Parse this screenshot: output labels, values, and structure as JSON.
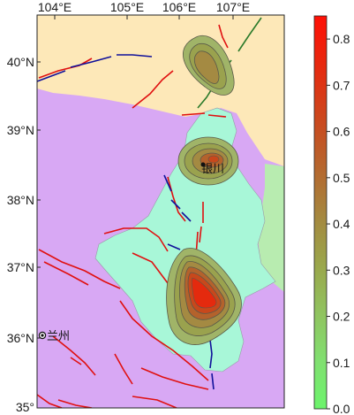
{
  "map": {
    "lon_ticks": [
      "104°E",
      "105°E",
      "106°E",
      "107°E"
    ],
    "lat_ticks": [
      "40°N",
      "39°N",
      "38°N",
      "37°N",
      "36°N",
      "35°"
    ],
    "cities": [
      {
        "name": "银川"
      },
      {
        "name": "兰州"
      }
    ],
    "colors": {
      "region_inner": "#a8f7d8",
      "region_north": "#fde8b8",
      "region_outer": "#d8a8f4",
      "region_east": "#b8ecb0",
      "fault_red": "#e01010",
      "fault_blue": "#10109a",
      "fault_green": "#2a7a2a"
    }
  },
  "colorbar": {
    "ticks": [
      "0.8",
      "0.7",
      "0.6",
      "0.5",
      "0.4",
      "0.3",
      "0.2",
      "0.1",
      "0.0"
    ],
    "min": 0.0,
    "max": 0.85,
    "colors": [
      "#70f070",
      "#8ccc6a",
      "#9aaa52",
      "#a6803e",
      "#b45c2a",
      "#c8431c",
      "#e0290e",
      "#f81006"
    ]
  }
}
